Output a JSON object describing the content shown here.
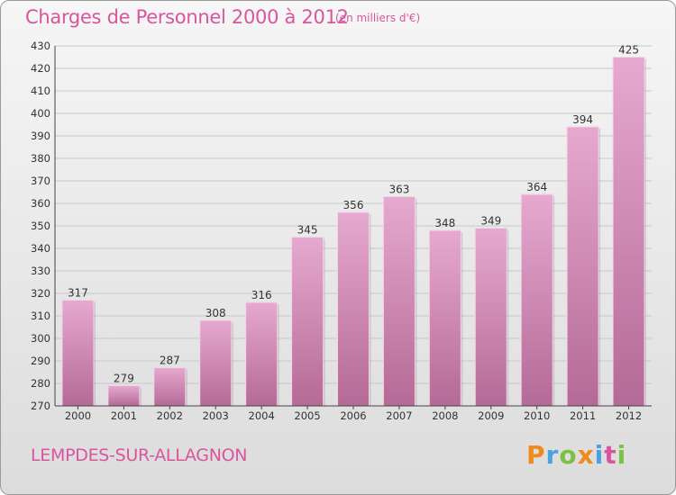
{
  "header": {
    "title": "Charges de Personnel 2000 à 2012",
    "subtitle": "(en milliers d'€)"
  },
  "footer": {
    "commune": "LEMPDES-SUR-ALLAGNON",
    "logo_text": "Proxiti",
    "logo_colors": [
      "#f08a1c",
      "#4aa3df",
      "#7cc242",
      "#f08a1c",
      "#4aa3df",
      "#d9559d",
      "#7cc242"
    ]
  },
  "colors": {
    "bar_light": "#e6a9cf",
    "bar_dark": "#b46a96",
    "grid": "#c8c8c8",
    "text_accent": "#d9559d"
  },
  "chart_data": {
    "type": "bar",
    "title": "Charges de Personnel 2000 à 2012",
    "subtitle": "(en milliers d'€)",
    "categories": [
      "2000",
      "2001",
      "2002",
      "2003",
      "2004",
      "2005",
      "2006",
      "2007",
      "2008",
      "2009",
      "2010",
      "2011",
      "2012"
    ],
    "values": [
      317,
      279,
      287,
      308,
      316,
      345,
      356,
      363,
      348,
      349,
      364,
      394,
      425
    ],
    "ylim": [
      270,
      430
    ],
    "yticks": [
      270,
      280,
      290,
      300,
      310,
      320,
      330,
      340,
      350,
      360,
      370,
      380,
      390,
      400,
      410,
      420,
      430
    ],
    "grid": true,
    "xlabel": "",
    "ylabel": ""
  }
}
